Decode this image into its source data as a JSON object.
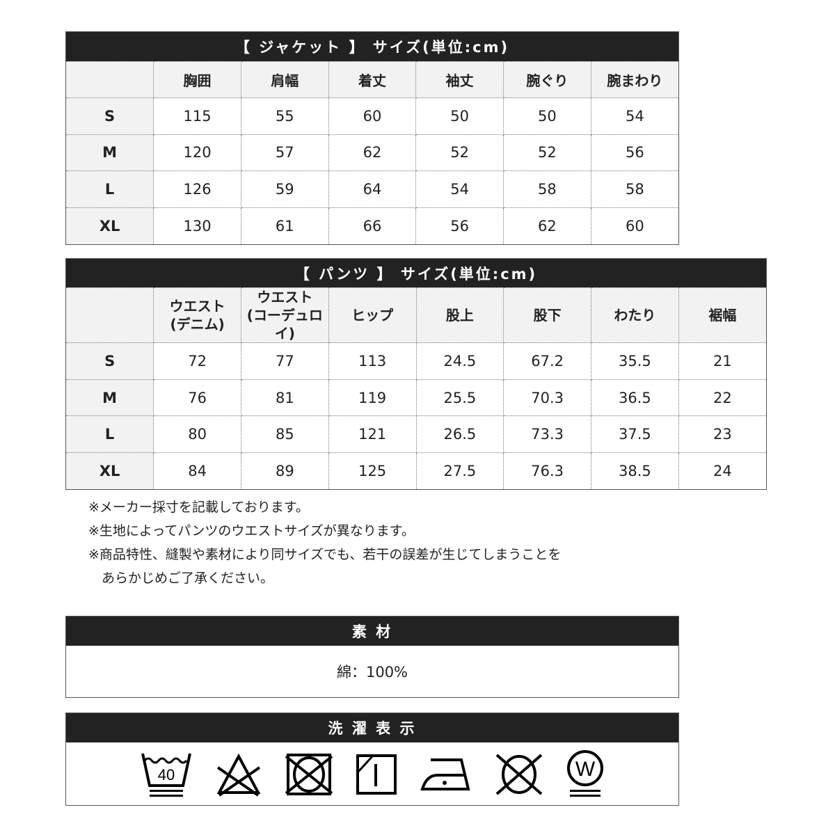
{
  "jacket": {
    "title": "【 ジャケット 】 サイズ(単位:cm)",
    "headers": [
      "",
      "胸囲",
      "肩幅",
      "着丈",
      "袖丈",
      "腕ぐり",
      "腕まわり"
    ],
    "rows": [
      [
        "S",
        "115",
        "55",
        "60",
        "50",
        "50",
        "54"
      ],
      [
        "M",
        "120",
        "57",
        "62",
        "52",
        "52",
        "56"
      ],
      [
        "L",
        "126",
        "59",
        "64",
        "54",
        "58",
        "58"
      ],
      [
        "XL",
        "130",
        "61",
        "66",
        "56",
        "62",
        "60"
      ]
    ]
  },
  "pants": {
    "title": "【 パンツ 】 サイズ(単位:cm)",
    "headers": [
      [
        "",
        ""
      ],
      [
        "ウエスト",
        "(デニム)"
      ],
      [
        "ウエスト",
        "(コーデュロイ)"
      ],
      [
        "ヒップ",
        ""
      ],
      [
        "股上",
        ""
      ],
      [
        "股下",
        ""
      ],
      [
        "わたり",
        ""
      ],
      [
        "裾幅",
        ""
      ]
    ],
    "rows": [
      [
        "S",
        "72",
        "77",
        "113",
        "24.5",
        "67.2",
        "35.5",
        "21"
      ],
      [
        "M",
        "76",
        "81",
        "119",
        "25.5",
        "70.3",
        "36.5",
        "22"
      ],
      [
        "L",
        "80",
        "85",
        "121",
        "26.5",
        "73.3",
        "37.5",
        "23"
      ],
      [
        "XL",
        "84",
        "89",
        "125",
        "27.5",
        "76.3",
        "38.5",
        "24"
      ]
    ]
  },
  "notes": [
    "※メーカー採寸を記載しております。",
    "※生地によってパンツのウエストサイズが異なります。",
    "※商品特性、縫製や素材により同サイズでも、若干の誤差が生じてしまうことを",
    "　あらかじめご了承ください。"
  ],
  "material": {
    "title": "素 材",
    "value": "綿：100%"
  },
  "care": {
    "title": "洗 濯 表 示",
    "wash_temp": "40",
    "icons": [
      "wash-40-gentle-icon",
      "no-bleach-icon",
      "no-tumble-dry-icon",
      "line-dry-shade-icon",
      "iron-low-icon",
      "no-dry-clean-icon",
      "wet-clean-gentle-icon"
    ]
  }
}
